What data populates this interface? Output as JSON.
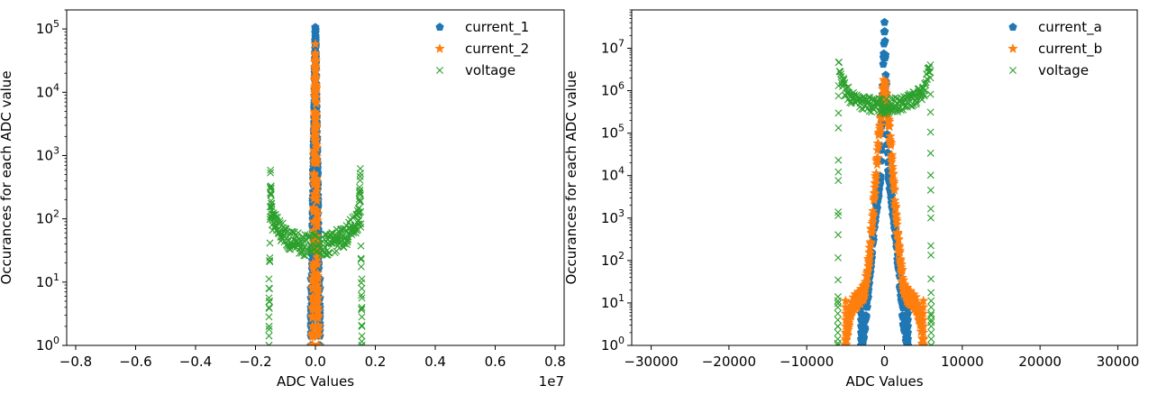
{
  "chart_data": [
    {
      "type": "scatter",
      "xlabel": "ADC Values",
      "ylabel": "Occurances for each ADC value",
      "yscale": "log",
      "xlim": [
        -8300000,
        8300000
      ],
      "ylim": [
        1,
        200000
      ],
      "x_ticks": [
        -8000000,
        -6000000,
        -4000000,
        -2000000,
        0,
        2000000,
        4000000,
        6000000,
        8000000
      ],
      "x_tick_labels": [
        "−0.8",
        "−0.6",
        "−0.4",
        "−0.2",
        "0.0",
        "0.2",
        "0.4",
        "0.6",
        "0.8"
      ],
      "x_offset_text": "1e7",
      "y_ticks": [
        1,
        10,
        100,
        1000,
        10000,
        100000
      ],
      "y_tick_exponents": [
        "0",
        "1",
        "2",
        "3",
        "4",
        "5"
      ],
      "legend_position": "top-right",
      "legend": [
        "current_1",
        "current_2",
        "voltage"
      ],
      "series": [
        {
          "name": "current_1",
          "marker": "pentagon",
          "color": "#1f77b4",
          "x": [
            -150000,
            -120000,
            -100000,
            -80000,
            -60000,
            -40000,
            -20000,
            0,
            20000,
            40000,
            60000,
            80000,
            100000,
            120000,
            150000
          ],
          "y": [
            2,
            5,
            40,
            300,
            800,
            3000,
            20000,
            100000,
            20000,
            3000,
            800,
            300,
            40,
            5,
            2
          ]
        },
        {
          "name": "current_2",
          "marker": "star",
          "color": "#ff7f0e",
          "x": [
            -100000,
            -80000,
            -60000,
            -40000,
            -20000,
            0,
            20000,
            40000,
            60000,
            80000,
            100000
          ],
          "y": [
            1,
            8,
            100,
            1000,
            8000,
            40000,
            8000,
            1000,
            100,
            8,
            1
          ]
        },
        {
          "name": "voltage",
          "marker": "x",
          "color": "#2ca02c",
          "x": [
            -1550000,
            -1500000,
            -1450000,
            -1300000,
            -1100000,
            -900000,
            -700000,
            -500000,
            -300000,
            0,
            300000,
            500000,
            700000,
            900000,
            1100000,
            1300000,
            1450000,
            1500000,
            1550000
          ],
          "y": [
            1,
            500,
            100,
            80,
            60,
            50,
            45,
            40,
            38,
            40,
            38,
            40,
            45,
            50,
            60,
            80,
            100,
            500,
            1
          ]
        }
      ]
    },
    {
      "type": "scatter",
      "xlabel": "ADC Values",
      "ylabel": "Occurances for each ADC value",
      "yscale": "log",
      "xlim": [
        -32500,
        32500
      ],
      "ylim": [
        1,
        80000000
      ],
      "x_ticks": [
        -30000,
        -20000,
        -10000,
        0,
        10000,
        20000,
        30000
      ],
      "x_tick_labels": [
        "−30000",
        "−20000",
        "−10000",
        "0",
        "10000",
        "20000",
        "30000"
      ],
      "y_ticks": [
        1,
        10,
        100,
        1000,
        10000,
        100000,
        1000000,
        10000000
      ],
      "y_tick_exponents": [
        "0",
        "1",
        "2",
        "3",
        "4",
        "5",
        "6",
        "7"
      ],
      "legend_position": "top-right",
      "legend": [
        "current_a",
        "current_b",
        "voltage"
      ],
      "series": [
        {
          "name": "current_a",
          "marker": "pentagon",
          "color": "#1f77b4",
          "x": [
            -3000,
            -2500,
            -2000,
            -1500,
            -1000,
            -500,
            0,
            500,
            1000,
            1500,
            2000,
            2500,
            3000
          ],
          "y": [
            1,
            3,
            30,
            300,
            2000,
            10000,
            40000000,
            10000,
            2000,
            300,
            30,
            3,
            1
          ]
        },
        {
          "name": "current_b",
          "marker": "star",
          "color": "#ff7f0e",
          "x": [
            -5000,
            -4500,
            -4000,
            -3500,
            -3000,
            -2500,
            -2000,
            -1500,
            -1000,
            -500,
            0,
            500,
            1000,
            1500,
            2000,
            2500,
            3000,
            3500,
            4000,
            4500,
            5000
          ],
          "y": [
            1,
            5,
            10,
            12,
            15,
            20,
            100,
            1000,
            20000,
            200000,
            2000000,
            200000,
            20000,
            1000,
            100,
            20,
            15,
            12,
            10,
            5,
            1
          ]
        },
        {
          "name": "voltage",
          "marker": "x",
          "color": "#2ca02c",
          "x": [
            -6000,
            -5900,
            -5000,
            -4000,
            -3000,
            -2000,
            -1000,
            0,
            1000,
            2000,
            3000,
            4000,
            5000,
            5900,
            6000
          ],
          "y": [
            1,
            4000000,
            900000,
            700000,
            550000,
            480000,
            450000,
            420000,
            450000,
            480000,
            550000,
            700000,
            900000,
            4000000,
            1
          ]
        }
      ]
    }
  ]
}
